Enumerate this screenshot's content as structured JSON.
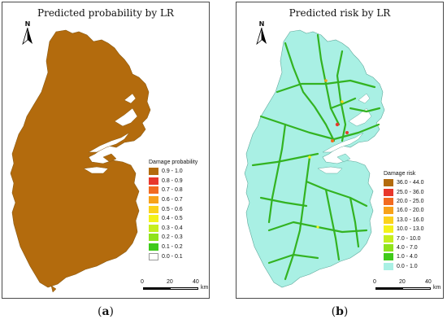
{
  "panel_a": {
    "title": "Predicted probability by LR",
    "north_label": "N",
    "fill_color": "#b36b0d",
    "legend": {
      "title": "Damage probability",
      "items": [
        {
          "label": "0.9 - 1.0",
          "color": "#b36b0d"
        },
        {
          "label": "0.8 - 0.9",
          "color": "#e8372c"
        },
        {
          "label": "0.7 - 0.8",
          "color": "#f26a20"
        },
        {
          "label": "0.6 - 0.7",
          "color": "#f7a21a"
        },
        {
          "label": "0.5 - 0.6",
          "color": "#fbd21c"
        },
        {
          "label": "0.4 - 0.5",
          "color": "#f3f21a"
        },
        {
          "label": "0.3 - 0.4",
          "color": "#c6ee1e"
        },
        {
          "label": "0.2 - 0.3",
          "color": "#8fe31c"
        },
        {
          "label": "0.1 - 0.2",
          "color": "#3fca1a"
        },
        {
          "label": "0.0 - 0.1",
          "color": "#ffffff"
        }
      ]
    },
    "scale": {
      "ticks": [
        "0",
        "20",
        "40"
      ],
      "unit": "km"
    }
  },
  "panel_b": {
    "title": "Predicted risk by LR",
    "north_label": "N",
    "fill_color": "#a9f0e4",
    "road_color": "#33b321",
    "legend": {
      "title": "Damage risk",
      "items": [
        {
          "label": "36.0 - 44.0",
          "color": "#b36b0d"
        },
        {
          "label": "25.0 - 36.0",
          "color": "#e8372c"
        },
        {
          "label": "20.0 - 25.0",
          "color": "#f26a20"
        },
        {
          "label": "16.0 - 20.0",
          "color": "#f7a21a"
        },
        {
          "label": "13.0 - 16.0",
          "color": "#fbd21c"
        },
        {
          "label": "10.0 - 13.0",
          "color": "#f3f21a"
        },
        {
          "label": "7.0 - 10.0",
          "color": "#c6ee1e"
        },
        {
          "label": "4.0 - 7.0",
          "color": "#8fe31c"
        },
        {
          "label": "1.0 - 4.0",
          "color": "#3fca1a"
        },
        {
          "label": "0.0 - 1.0",
          "color": "#a9f0e4"
        }
      ]
    },
    "scale": {
      "ticks": [
        "0",
        "20",
        "40"
      ],
      "unit": "km"
    }
  },
  "captions": {
    "a_open": "(",
    "a_letter": "a",
    "a_close": ")",
    "b_open": "(",
    "b_letter": "b",
    "b_close": ")"
  }
}
